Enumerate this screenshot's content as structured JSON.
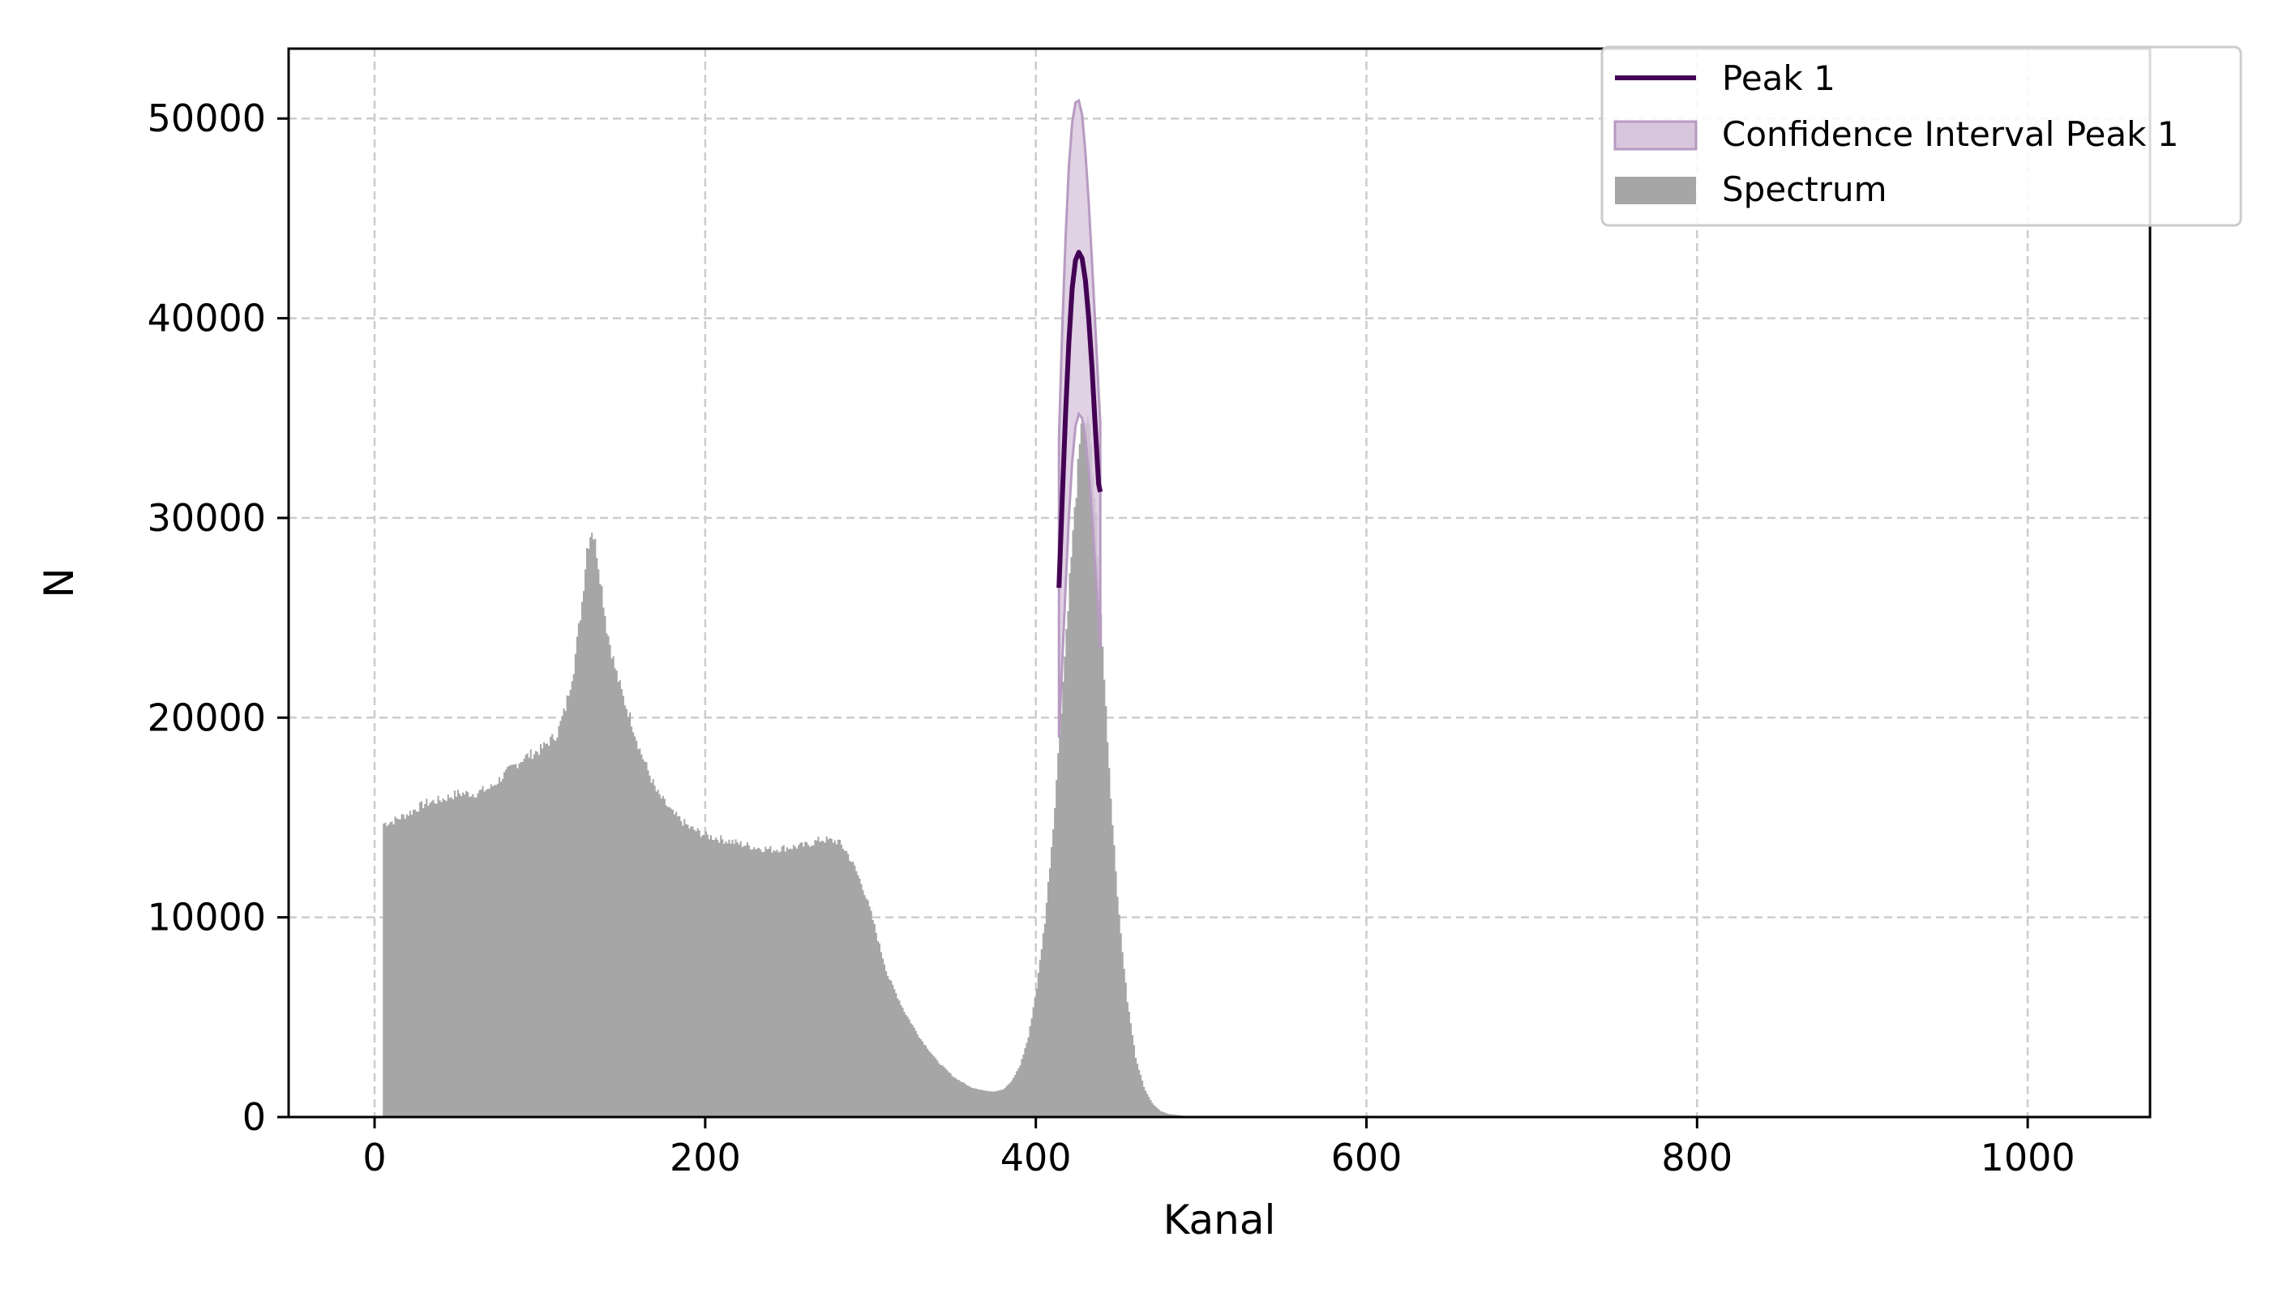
{
  "chart_data": {
    "type": "area",
    "xlabel": "Kanal",
    "ylabel": "N",
    "xlim": [
      -52,
      1074
    ],
    "ylim": [
      0,
      53500
    ],
    "xticks": [
      0,
      200,
      400,
      600,
      800,
      1000
    ],
    "yticks": [
      0,
      10000,
      20000,
      30000,
      40000,
      50000
    ],
    "grid": true,
    "legend_position": "top-right",
    "colors": {
      "spectrum": "#a6a6a6",
      "peak": "#440154",
      "confidence_fill": "#d8c6dd",
      "confidence_edge": "#b79ac1",
      "grid": "#cccccc"
    },
    "spectrum": {
      "name": "Spectrum",
      "x": [
        5,
        10,
        20,
        30,
        40,
        50,
        60,
        70,
        80,
        90,
        100,
        110,
        115,
        120,
        125,
        128,
        131,
        134,
        137,
        140,
        145,
        150,
        155,
        160,
        170,
        180,
        190,
        200,
        210,
        220,
        230,
        240,
        250,
        260,
        270,
        280,
        285,
        290,
        295,
        300,
        305,
        310,
        320,
        330,
        340,
        350,
        360,
        370,
        375,
        380,
        385,
        390,
        395,
        400,
        405,
        410,
        415,
        420,
        425,
        428,
        432,
        436,
        440,
        445,
        450,
        455,
        460,
        465,
        470,
        475,
        480,
        490,
        500,
        520,
        550,
        560,
        600,
        1074
      ],
      "y": [
        14700,
        14800,
        15200,
        15700,
        15900,
        16200,
        16200,
        16500,
        17300,
        18000,
        18400,
        19200,
        20500,
        22500,
        25800,
        28500,
        29500,
        28300,
        26500,
        24500,
        22500,
        21000,
        19800,
        18400,
        16300,
        15200,
        14500,
        14100,
        13900,
        13700,
        13500,
        13400,
        13500,
        13600,
        13900,
        13800,
        13300,
        12500,
        11500,
        10200,
        8600,
        7100,
        5300,
        3900,
        2800,
        2000,
        1500,
        1300,
        1300,
        1400,
        1800,
        2600,
        4000,
        6500,
        9800,
        14500,
        20500,
        27000,
        32500,
        35200,
        34500,
        30000,
        23500,
        16000,
        10000,
        5800,
        3000,
        1500,
        700,
        300,
        150,
        50,
        20,
        5,
        30,
        10,
        0,
        0
      ]
    },
    "peak": {
      "name": "Peak 1",
      "x": [
        414,
        416,
        418,
        420,
        422,
        424,
        426,
        428,
        430,
        432,
        434,
        436,
        438,
        439
      ],
      "y": [
        26500,
        31000,
        35200,
        38800,
        41500,
        42900,
        43300,
        43000,
        41900,
        40000,
        37500,
        34500,
        31700,
        31300
      ]
    },
    "confidence_band": {
      "name": "Confidence Interval Peak 1",
      "x": [
        414,
        416,
        418,
        420,
        422,
        424,
        426,
        428,
        430,
        432,
        434,
        436,
        438,
        439
      ],
      "lower": [
        19000,
        22800,
        26500,
        30000,
        32800,
        34600,
        35200,
        35000,
        34000,
        32300,
        30100,
        27500,
        24800,
        23500
      ],
      "upper": [
        34000,
        39500,
        44000,
        47600,
        49800,
        50800,
        50900,
        50200,
        48300,
        45800,
        42800,
        39600,
        36300,
        34800
      ]
    }
  }
}
